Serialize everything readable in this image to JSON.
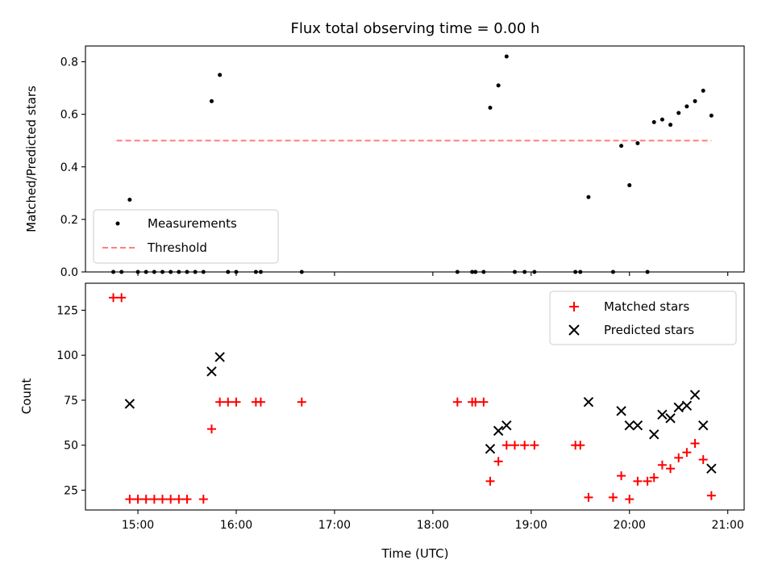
{
  "chart_data": [
    {
      "type": "scatter",
      "title": "Flux total observing time = 0.00 h",
      "xlabel": "",
      "ylabel": "Matched/Predicted stars",
      "xlim": [
        "14:28",
        "21:10"
      ],
      "ylim": [
        0,
        0.86
      ],
      "yticks": [
        0.0,
        0.2,
        0.4,
        0.6,
        0.8
      ],
      "ytick_labels": [
        "0.0",
        "0.2",
        "0.4",
        "0.6",
        "0.8"
      ],
      "xticks": [
        "15:00",
        "16:00",
        "17:00",
        "18:00",
        "19:00",
        "20:00",
        "21:00"
      ],
      "show_x_tick_labels": false,
      "legend": {
        "position": "lower-left",
        "entries": [
          "Measurements",
          "Threshold"
        ]
      },
      "series": [
        {
          "name": "Measurements",
          "marker": "dot",
          "color": "#000000",
          "points": [
            [
              "14:45",
              0
            ],
            [
              "14:50",
              0
            ],
            [
              "14:55",
              0.275
            ],
            [
              "15:00",
              0
            ],
            [
              "15:05",
              0
            ],
            [
              "15:10",
              0
            ],
            [
              "15:15",
              0
            ],
            [
              "15:20",
              0
            ],
            [
              "15:25",
              0
            ],
            [
              "15:30",
              0
            ],
            [
              "15:35",
              0
            ],
            [
              "15:40",
              0
            ],
            [
              "15:45",
              0.65
            ],
            [
              "15:50",
              0.75
            ],
            [
              "15:55",
              0
            ],
            [
              "16:00",
              0
            ],
            [
              "16:12",
              0
            ],
            [
              "16:15",
              0
            ],
            [
              "16:40",
              0
            ],
            [
              "18:15",
              0
            ],
            [
              "18:24",
              0
            ],
            [
              "18:26",
              0
            ],
            [
              "18:31",
              0
            ],
            [
              "18:35",
              0.625
            ],
            [
              "18:40",
              0.71
            ],
            [
              "18:45",
              0.82
            ],
            [
              "18:50",
              0
            ],
            [
              "18:56",
              0
            ],
            [
              "19:02",
              0
            ],
            [
              "19:27",
              0
            ],
            [
              "19:30",
              0
            ],
            [
              "19:35",
              0.285
            ],
            [
              "19:50",
              0
            ],
            [
              "19:55",
              0.48
            ],
            [
              "20:00",
              0.33
            ],
            [
              "20:05",
              0.49
            ],
            [
              "20:11",
              0
            ],
            [
              "20:15",
              0.57
            ],
            [
              "20:20",
              0.58
            ],
            [
              "20:25",
              0.56
            ],
            [
              "20:30",
              0.605
            ],
            [
              "20:35",
              0.63
            ],
            [
              "20:40",
              0.65
            ],
            [
              "20:45",
              0.69
            ],
            [
              "20:50",
              0.595
            ]
          ]
        },
        {
          "name": "Threshold",
          "line": "dashed",
          "color": "#ff7f7f",
          "points": [
            [
              "14:47",
              0.5
            ],
            [
              "20:50",
              0.5
            ]
          ]
        }
      ]
    },
    {
      "type": "scatter",
      "title": "",
      "xlabel": "Time (UTC)",
      "ylabel": "Count",
      "xlim": [
        "14:28",
        "21:10"
      ],
      "ylim": [
        14,
        140
      ],
      "yticks": [
        25,
        50,
        75,
        100,
        125
      ],
      "ytick_labels": [
        "25",
        "50",
        "75",
        "100",
        "125"
      ],
      "xticks": [
        "15:00",
        "16:00",
        "17:00",
        "18:00",
        "19:00",
        "20:00",
        "21:00"
      ],
      "legend": {
        "position": "upper-right",
        "entries": [
          "Matched stars",
          "Predicted stars"
        ]
      },
      "series": [
        {
          "name": "Matched stars",
          "marker": "plus",
          "color": "#ff0000",
          "points": [
            [
              "14:45",
              132
            ],
            [
              "14:50",
              132
            ],
            [
              "14:55",
              20
            ],
            [
              "15:00",
              20
            ],
            [
              "15:05",
              20
            ],
            [
              "15:10",
              20
            ],
            [
              "15:15",
              20
            ],
            [
              "15:20",
              20
            ],
            [
              "15:25",
              20
            ],
            [
              "15:30",
              20
            ],
            [
              "15:40",
              20
            ],
            [
              "15:45",
              59
            ],
            [
              "15:50",
              74
            ],
            [
              "15:55",
              74
            ],
            [
              "16:00",
              74
            ],
            [
              "16:12",
              74
            ],
            [
              "16:15",
              74
            ],
            [
              "16:40",
              74
            ],
            [
              "18:15",
              74
            ],
            [
              "18:24",
              74
            ],
            [
              "18:26",
              74
            ],
            [
              "18:31",
              74
            ],
            [
              "18:35",
              30
            ],
            [
              "18:40",
              41
            ],
            [
              "18:45",
              50
            ],
            [
              "18:50",
              50
            ],
            [
              "18:56",
              50
            ],
            [
              "19:02",
              50
            ],
            [
              "19:27",
              50
            ],
            [
              "19:30",
              50
            ],
            [
              "19:35",
              21
            ],
            [
              "19:50",
              21
            ],
            [
              "19:55",
              33
            ],
            [
              "20:00",
              20
            ],
            [
              "20:05",
              30
            ],
            [
              "20:11",
              30
            ],
            [
              "20:15",
              32
            ],
            [
              "20:20",
              39
            ],
            [
              "20:25",
              37
            ],
            [
              "20:30",
              43
            ],
            [
              "20:35",
              46
            ],
            [
              "20:40",
              51
            ],
            [
              "20:45",
              42
            ],
            [
              "20:50",
              22
            ]
          ]
        },
        {
          "name": "Predicted stars",
          "marker": "x",
          "color": "#000000",
          "points": [
            [
              "14:55",
              73
            ],
            [
              "15:45",
              91
            ],
            [
              "15:50",
              99
            ],
            [
              "18:35",
              48
            ],
            [
              "18:40",
              58
            ],
            [
              "18:45",
              61
            ],
            [
              "19:35",
              74
            ],
            [
              "19:55",
              69
            ],
            [
              "20:00",
              61
            ],
            [
              "20:05",
              61
            ],
            [
              "20:15",
              56
            ],
            [
              "20:20",
              67
            ],
            [
              "20:25",
              65
            ],
            [
              "20:30",
              71
            ],
            [
              "20:35",
              72
            ],
            [
              "20:40",
              78
            ],
            [
              "20:45",
              61
            ],
            [
              "20:50",
              37
            ]
          ]
        }
      ]
    }
  ]
}
